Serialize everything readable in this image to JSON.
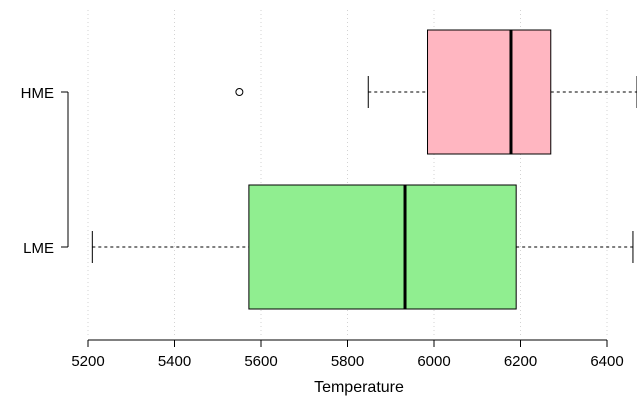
{
  "chart_data": {
    "type": "boxplot",
    "orientation": "horizontal",
    "xlabel": "Temperature",
    "xlim": [
      5200,
      6460
    ],
    "xticks": [
      5200,
      5400,
      5600,
      5800,
      6000,
      6200,
      6400
    ],
    "grid": "vertical dotted",
    "groups": [
      {
        "label": "HME",
        "color": "#ffb6c1",
        "whisker_low": 5848,
        "q1": 5985,
        "median": 6178,
        "q3": 6270,
        "whisker_high": 6470,
        "outliers": [
          5550
        ]
      },
      {
        "label": "LME",
        "color": "#90ee90",
        "whisker_low": 5210,
        "q1": 5572,
        "median": 5933,
        "q3": 6190,
        "whisker_high": 6460,
        "outliers": []
      }
    ]
  }
}
